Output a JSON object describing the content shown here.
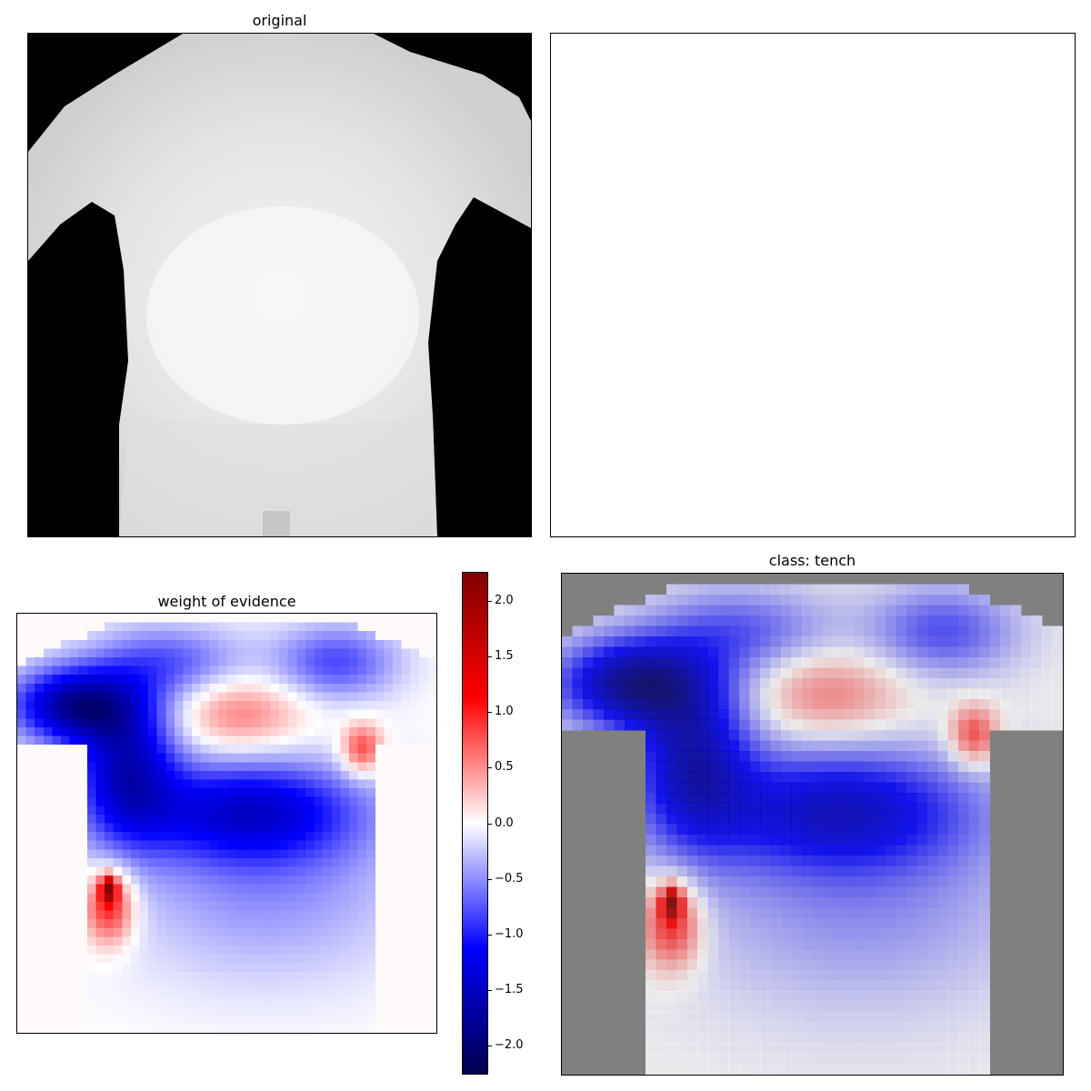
{
  "chart_data": [
    {
      "type": "image",
      "panel": "top-left",
      "title": "original",
      "description_colormap": "grayscale",
      "background_color": "#000000",
      "figure_color": "#e2e2e2"
    },
    {
      "type": "image",
      "panel": "top-right",
      "title": "",
      "content": "empty"
    },
    {
      "type": "heatmap",
      "panel": "bottom-left",
      "title": "weight of evidence",
      "colormap": "seismic",
      "colorbar": {
        "ticks": [
          2.0,
          1.5,
          1.0,
          0.5,
          0.0,
          -0.5,
          -1.0,
          -1.5,
          -2.0
        ],
        "tick_labels": [
          "2.0",
          "1.5",
          "1.0",
          "0.5",
          "0.0",
          "−0.5",
          "−1.0",
          "−1.5",
          "−2.0"
        ],
        "range": [
          -2.25,
          2.25
        ]
      }
    },
    {
      "type": "heatmap",
      "panel": "bottom-right",
      "title": "class: tench",
      "colormap": "seismic",
      "background_color": "#808080"
    }
  ],
  "colors": {
    "seismic_low": "#00004c",
    "seismic_mid": "#ffffff",
    "seismic_high": "#7f0000",
    "mask_gray": "#808080"
  }
}
